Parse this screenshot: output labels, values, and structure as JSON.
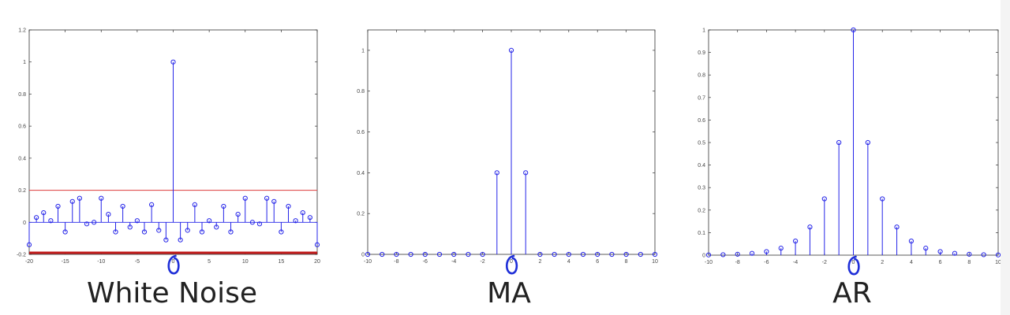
{
  "chart_data": [
    {
      "type": "stem",
      "title": "White Noise",
      "xlim": [
        -20,
        20
      ],
      "ylim": [
        -0.2,
        1.2
      ],
      "xticks": [
        -20,
        -15,
        -10,
        -5,
        0,
        5,
        10,
        15,
        20
      ],
      "yticks": [
        -0.2,
        0,
        0.2,
        0.4,
        0.6,
        0.8,
        1,
        1.2
      ],
      "x": [
        -20,
        -19,
        -18,
        -17,
        -16,
        -15,
        -14,
        -13,
        -12,
        -11,
        -10,
        -9,
        -8,
        -7,
        -6,
        -5,
        -4,
        -3,
        -2,
        -1,
        0,
        1,
        2,
        3,
        4,
        5,
        6,
        7,
        8,
        9,
        10,
        11,
        12,
        13,
        14,
        15,
        16,
        17,
        18,
        19,
        20
      ],
      "values": [
        -0.14,
        0.03,
        0.06,
        0.01,
        0.1,
        -0.06,
        0.13,
        0.15,
        -0.01,
        0.0,
        0.15,
        0.05,
        -0.06,
        0.1,
        -0.03,
        0.01,
        -0.06,
        0.11,
        -0.05,
        -0.11,
        1.0,
        -0.11,
        -0.05,
        0.11,
        -0.06,
        0.01,
        -0.03,
        0.1,
        -0.06,
        0.05,
        0.15,
        0.0,
        -0.01,
        0.15,
        0.13,
        -0.06,
        0.1,
        0.01,
        0.06,
        0.03,
        -0.14
      ],
      "hlines": [
        {
          "y": 0.2,
          "color": "#e05050",
          "width": 1.2
        },
        {
          "y": -0.19,
          "color": "#c01818",
          "width": 3
        }
      ],
      "annotation_x": 0
    },
    {
      "type": "stem",
      "title": "MA",
      "xlim": [
        -10,
        10
      ],
      "ylim": [
        0,
        1.1
      ],
      "xticks": [
        -10,
        -8,
        -6,
        -4,
        -2,
        0,
        2,
        4,
        6,
        8,
        10
      ],
      "yticks": [
        0,
        0.2,
        0.4,
        0.6,
        0.8,
        1
      ],
      "x": [
        -10,
        -9,
        -8,
        -7,
        -6,
        -5,
        -4,
        -3,
        -2,
        -1,
        0,
        1,
        2,
        3,
        4,
        5,
        6,
        7,
        8,
        9,
        10
      ],
      "values": [
        0,
        0,
        0,
        0,
        0,
        0,
        0,
        0,
        0,
        0.4,
        1,
        0.4,
        0,
        0,
        0,
        0,
        0,
        0,
        0,
        0,
        0
      ],
      "annotation_x": 0
    },
    {
      "type": "stem",
      "title": "AR",
      "xlim": [
        -10,
        10
      ],
      "ylim": [
        0,
        1
      ],
      "xticks": [
        -10,
        -8,
        -6,
        -4,
        -2,
        0,
        2,
        4,
        6,
        8,
        10
      ],
      "yticks": [
        0,
        0.1,
        0.2,
        0.3,
        0.4,
        0.5,
        0.6,
        0.7,
        0.8,
        0.9,
        1
      ],
      "x": [
        -10,
        -9,
        -8,
        -7,
        -6,
        -5,
        -4,
        -3,
        -2,
        -1,
        0,
        1,
        2,
        3,
        4,
        5,
        6,
        7,
        8,
        9,
        10
      ],
      "values": [
        0.001,
        0.002,
        0.004,
        0.008,
        0.016,
        0.031,
        0.0625,
        0.125,
        0.25,
        0.5,
        1,
        0.5,
        0.25,
        0.125,
        0.0625,
        0.031,
        0.016,
        0.008,
        0.004,
        0.002,
        0.001
      ],
      "annotation_x": 0
    }
  ],
  "colors": {
    "stem": "#2424e8",
    "axis": "#333333",
    "annotation": "#1f2fd8"
  }
}
